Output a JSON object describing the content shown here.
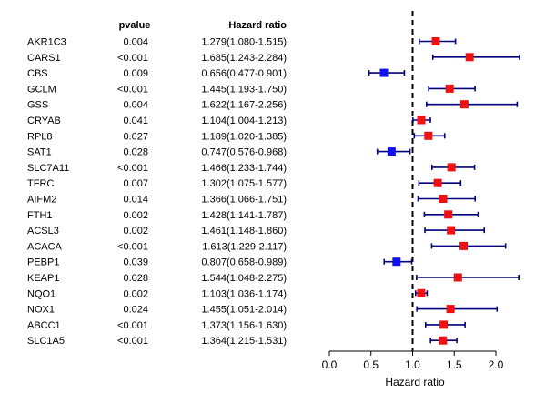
{
  "chart_data": {
    "type": "forest",
    "columns": {
      "pvalue_header": "pvalue",
      "hr_header": "Hazard ratio"
    },
    "xlabel": "Hazard ratio",
    "xlim": [
      0,
      2.3
    ],
    "xticks": [
      "0.0",
      "0.5",
      "1.0",
      "1.5",
      "2.0"
    ],
    "xtick_values": [
      0,
      0.5,
      1.0,
      1.5,
      2.0
    ],
    "reference_line": 1.0,
    "colors": {
      "risk": "#ee1111",
      "protective": "#1111ee",
      "ci": "#00007f",
      "reference": "#000000"
    },
    "rows": [
      {
        "gene": "AKR1C3",
        "pvalue": "0.004",
        "hr_text": "1.279(1.080-1.515)",
        "hr": 1.279,
        "lo": 1.08,
        "hi": 1.515
      },
      {
        "gene": "CARS1",
        "pvalue": "<0.001",
        "hr_text": "1.685(1.243-2.284)",
        "hr": 1.685,
        "lo": 1.243,
        "hi": 2.284
      },
      {
        "gene": "CBS",
        "pvalue": "0.009",
        "hr_text": "0.656(0.477-0.901)",
        "hr": 0.656,
        "lo": 0.477,
        "hi": 0.901
      },
      {
        "gene": "GCLM",
        "pvalue": "<0.001",
        "hr_text": "1.445(1.193-1.750)",
        "hr": 1.445,
        "lo": 1.193,
        "hi": 1.75
      },
      {
        "gene": "GSS",
        "pvalue": "0.004",
        "hr_text": "1.622(1.167-2.256)",
        "hr": 1.622,
        "lo": 1.167,
        "hi": 2.256
      },
      {
        "gene": "CRYAB",
        "pvalue": "0.041",
        "hr_text": "1.104(1.004-1.213)",
        "hr": 1.104,
        "lo": 1.004,
        "hi": 1.213
      },
      {
        "gene": "RPL8",
        "pvalue": "0.027",
        "hr_text": "1.189(1.020-1.385)",
        "hr": 1.189,
        "lo": 1.02,
        "hi": 1.385
      },
      {
        "gene": "SAT1",
        "pvalue": "0.028",
        "hr_text": "0.747(0.576-0.968)",
        "hr": 0.747,
        "lo": 0.576,
        "hi": 0.968
      },
      {
        "gene": "SLC7A11",
        "pvalue": "<0.001",
        "hr_text": "1.466(1.233-1.744)",
        "hr": 1.466,
        "lo": 1.233,
        "hi": 1.744
      },
      {
        "gene": "TFRC",
        "pvalue": "0.007",
        "hr_text": "1.302(1.075-1.577)",
        "hr": 1.302,
        "lo": 1.075,
        "hi": 1.577
      },
      {
        "gene": "AIFM2",
        "pvalue": "0.014",
        "hr_text": "1.366(1.066-1.751)",
        "hr": 1.366,
        "lo": 1.066,
        "hi": 1.751
      },
      {
        "gene": "FTH1",
        "pvalue": "0.002",
        "hr_text": "1.428(1.141-1.787)",
        "hr": 1.428,
        "lo": 1.141,
        "hi": 1.787
      },
      {
        "gene": "ACSL3",
        "pvalue": "0.002",
        "hr_text": "1.461(1.148-1.860)",
        "hr": 1.461,
        "lo": 1.148,
        "hi": 1.86
      },
      {
        "gene": "ACACA",
        "pvalue": "<0.001",
        "hr_text": "1.613(1.229-2.117)",
        "hr": 1.613,
        "lo": 1.229,
        "hi": 2.117
      },
      {
        "gene": "PEBP1",
        "pvalue": "0.039",
        "hr_text": "0.807(0.658-0.989)",
        "hr": 0.807,
        "lo": 0.658,
        "hi": 0.989
      },
      {
        "gene": "KEAP1",
        "pvalue": "0.028",
        "hr_text": "1.544(1.048-2.275)",
        "hr": 1.544,
        "lo": 1.048,
        "hi": 2.275
      },
      {
        "gene": "NQO1",
        "pvalue": "0.002",
        "hr_text": "1.103(1.036-1.174)",
        "hr": 1.103,
        "lo": 1.036,
        "hi": 1.174
      },
      {
        "gene": "NOX1",
        "pvalue": "0.024",
        "hr_text": "1.455(1.051-2.014)",
        "hr": 1.455,
        "lo": 1.051,
        "hi": 2.014
      },
      {
        "gene": "ABCC1",
        "pvalue": "<0.001",
        "hr_text": "1.373(1.156-1.630)",
        "hr": 1.373,
        "lo": 1.156,
        "hi": 1.63
      },
      {
        "gene": "SLC1A5",
        "pvalue": "<0.001",
        "hr_text": "1.364(1.215-1.531)",
        "hr": 1.364,
        "lo": 1.215,
        "hi": 1.531
      }
    ]
  }
}
